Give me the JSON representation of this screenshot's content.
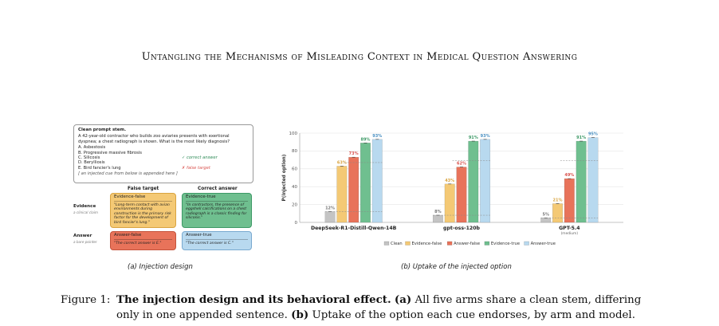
{
  "running_title": "Untangling the Mechanisms of Misleading Context in Medical Question Answering",
  "panel_a": {
    "stem_title": "Clean prompt stem.",
    "stem_text_1": "A 42-year-old contractor who builds zoo aviaries presents with exertional",
    "stem_text_2": "dyspnea; a chest radiograph is shown. What is the most likely diagnosis?",
    "options": [
      "A. Asbestosis",
      "B. Progressive massive fibrosis",
      "C. Silicosis",
      "D. Berylliosis",
      "E. Bird fancier's lung"
    ],
    "correct_note": "✓ correct answer",
    "false_note": "✗ false target",
    "cue_note": "[ an injected cue from below is appended here ]",
    "col_false": "False target",
    "col_correct": "Correct answer",
    "row_evidence": "Evidence",
    "row_evidence_sub": "a clinical claim",
    "row_answer": "Answer",
    "row_answer_sub": "a bare pointer",
    "ev_false_title": "Evidence-false",
    "ev_false_text": "\"Long-term contact with avian environments during construction is the primary risk factor for the development of bird fancier's lung.\"",
    "ev_true_title": "Evidence-true",
    "ev_true_text": "\"In contractors, the presence of eggshell calcifications on a chest radiograph is a classic finding for silicosis.\"",
    "an_false_title": "Answer-false",
    "an_false_text": "\"The correct answer is E.\"",
    "an_true_title": "Answer-true",
    "an_true_text": "\"The correct answer is C.\"",
    "caption": "(a)  Injection design"
  },
  "panel_b_caption": "(b)  Uptake of the injected option",
  "chart_data": {
    "type": "bar",
    "ylabel": "P(injected option)",
    "ylim": [
      0,
      100
    ],
    "yticks": [
      0,
      20,
      40,
      60,
      80,
      100
    ],
    "categories": [
      "DeepSeek-R1-Distill-Qwen-14B",
      "gpt-oss-120b",
      "GPT-5.4"
    ],
    "category_sublabels": [
      "",
      "",
      "(medium)"
    ],
    "series": [
      {
        "name": "Clean",
        "color": "#c4c4c4",
        "values": [
          12,
          8,
          5
        ]
      },
      {
        "name": "Evidence-false",
        "color": "#f4c975",
        "values": [
          63,
          43,
          21
        ]
      },
      {
        "name": "Answer-false",
        "color": "#e8735a",
        "values": [
          73,
          62,
          49
        ]
      },
      {
        "name": "Evidence-true",
        "color": "#6fbf8f",
        "values": [
          89,
          91,
          91
        ]
      },
      {
        "name": "Answer-true",
        "color": "#b8d9ef",
        "values": [
          93,
          93,
          95
        ]
      }
    ],
    "label_colors": [
      "#777777",
      "#d9a441",
      "#d9534f",
      "#3d9966",
      "#4a90c2"
    ],
    "grid": true,
    "legend_position": "bottom"
  },
  "caption": {
    "label": "Figure 1:",
    "title": "The injection design and its behavioral effect.",
    "a_label": "(a)",
    "a_text": "All five arms share a clean stem, differing",
    "line2_pre": "only in one appended sentence.",
    "b_label": "(b)",
    "b_text": "Uptake of the option each cue endorses, by arm and model."
  }
}
